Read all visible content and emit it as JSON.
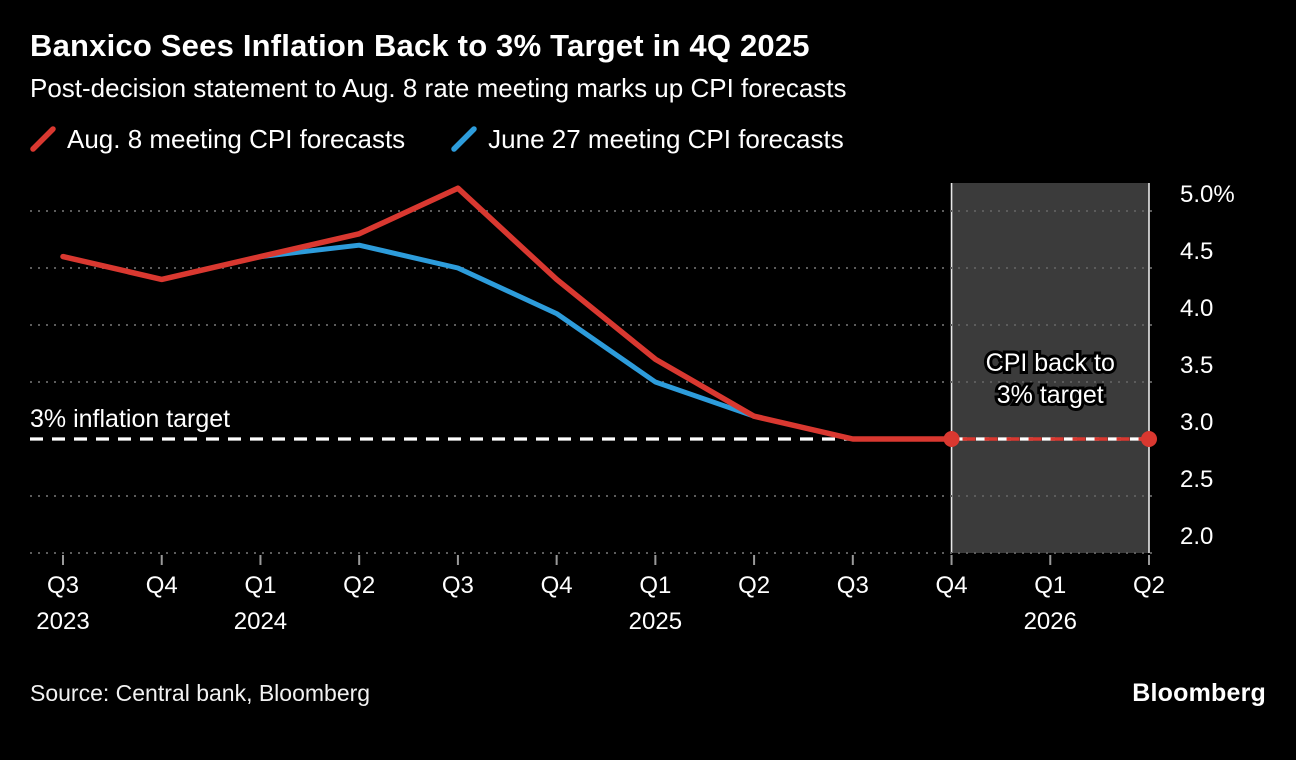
{
  "header": {
    "title": "Banxico Sees Inflation Back to 3% Target in 4Q 2025",
    "subtitle": "Post-decision statement to Aug. 8 rate meeting marks up CPI forecasts"
  },
  "legend": [
    {
      "label": "Aug. 8 meeting CPI forecasts",
      "color": "#d93830"
    },
    {
      "label": "June 27 meeting CPI forecasts",
      "color": "#2d9cdb"
    }
  ],
  "chart_data": {
    "type": "line",
    "categories": [
      "Q3 2023",
      "Q4 2023",
      "Q1 2024",
      "Q2 2024",
      "Q3 2024",
      "Q4 2024",
      "Q1 2025",
      "Q2 2025",
      "Q3 2025",
      "Q4 2025",
      "Q1 2026",
      "Q2 2026"
    ],
    "x_tick_labels": [
      "Q3",
      "Q4",
      "Q1",
      "Q2",
      "Q3",
      "Q4",
      "Q1",
      "Q2",
      "Q3",
      "Q4",
      "Q1",
      "Q2"
    ],
    "year_labels": [
      {
        "index": 0,
        "label": "2023"
      },
      {
        "index": 2,
        "label": "2024"
      },
      {
        "index": 6,
        "label": "2025"
      },
      {
        "index": 10,
        "label": "2026"
      }
    ],
    "series": [
      {
        "name": "Aug. 8 meeting CPI forecasts",
        "color": "#d93830",
        "values": [
          4.6,
          4.4,
          4.6,
          4.8,
          5.2,
          4.4,
          3.7,
          3.2,
          3.0,
          3.0,
          3.0,
          3.0
        ],
        "solid_until_index": 9,
        "markers": [
          9,
          11
        ]
      },
      {
        "name": "June 27 meeting CPI forecasts",
        "color": "#2d9cdb",
        "values": [
          null,
          null,
          4.6,
          4.7,
          4.5,
          4.1,
          3.5,
          3.2,
          null,
          null,
          null,
          null
        ]
      }
    ],
    "ylim": [
      2.0,
      5.0
    ],
    "y_ticks": [
      {
        "value": 5.0,
        "label": "5.0%"
      },
      {
        "value": 4.5,
        "label": "4.5"
      },
      {
        "value": 4.0,
        "label": "4.0"
      },
      {
        "value": 3.5,
        "label": "3.5"
      },
      {
        "value": 3.0,
        "label": "3.0"
      },
      {
        "value": 2.5,
        "label": "2.5"
      },
      {
        "value": 2.0,
        "label": "2.0"
      }
    ],
    "target_line": {
      "value": 3.0,
      "label": "3% inflation target",
      "color": "#ffffff"
    },
    "forecast_band": {
      "from_index": 9,
      "to_index": 11,
      "lines": [
        "CPI back to",
        "3% target"
      ],
      "fill": "#3b3b3b"
    },
    "grid": "dotted-horizontal",
    "legend_position": "top"
  },
  "footer": {
    "source": "Source: Central bank, Bloomberg",
    "brand": "Bloomberg"
  }
}
